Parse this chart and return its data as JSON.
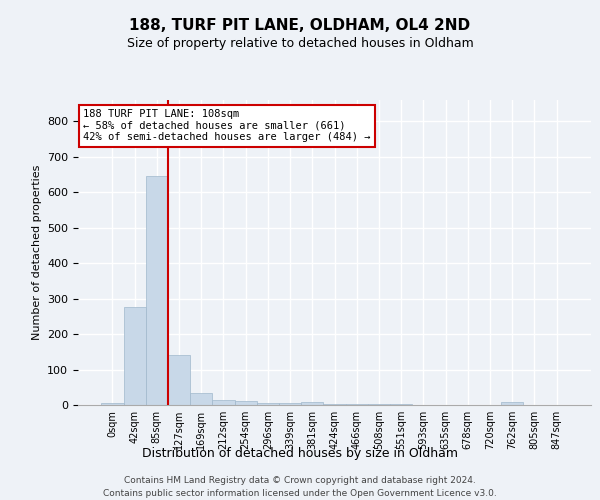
{
  "title": "188, TURF PIT LANE, OLDHAM, OL4 2ND",
  "subtitle": "Size of property relative to detached houses in Oldham",
  "xlabel": "Distribution of detached houses by size in Oldham",
  "ylabel": "Number of detached properties",
  "bar_values": [
    5,
    275,
    645,
    140,
    33,
    15,
    10,
    6,
    6,
    8,
    3,
    2,
    2,
    2,
    1,
    1,
    1,
    0,
    8,
    0,
    0
  ],
  "bar_labels": [
    "0sqm",
    "42sqm",
    "85sqm",
    "127sqm",
    "169sqm",
    "212sqm",
    "254sqm",
    "296sqm",
    "339sqm",
    "381sqm",
    "424sqm",
    "466sqm",
    "508sqm",
    "551sqm",
    "593sqm",
    "635sqm",
    "678sqm",
    "720sqm",
    "762sqm",
    "805sqm",
    "847sqm"
  ],
  "bar_color": "#c8d8e8",
  "bar_edgecolor": "#a0b8cc",
  "ylim": [
    0,
    860
  ],
  "yticks": [
    0,
    100,
    200,
    300,
    400,
    500,
    600,
    700,
    800
  ],
  "property_bin_index": 2,
  "vline_x": 2.5,
  "annotation_text": "188 TURF PIT LANE: 108sqm\n← 58% of detached houses are smaller (661)\n42% of semi-detached houses are larger (484) →",
  "annotation_box_color": "#ffffff",
  "annotation_box_edgecolor": "#cc0000",
  "vline_color": "#cc0000",
  "footer_line1": "Contains HM Land Registry data © Crown copyright and database right 2024.",
  "footer_line2": "Contains public sector information licensed under the Open Government Licence v3.0.",
  "background_color": "#eef2f7",
  "plot_bg_color": "#eef2f7",
  "grid_color": "#ffffff",
  "title_fontsize": 11,
  "subtitle_fontsize": 9,
  "xlabel_fontsize": 9,
  "ylabel_fontsize": 8,
  "xtick_fontsize": 7,
  "ytick_fontsize": 8,
  "annotation_fontsize": 7.5,
  "footer_fontsize": 6.5
}
